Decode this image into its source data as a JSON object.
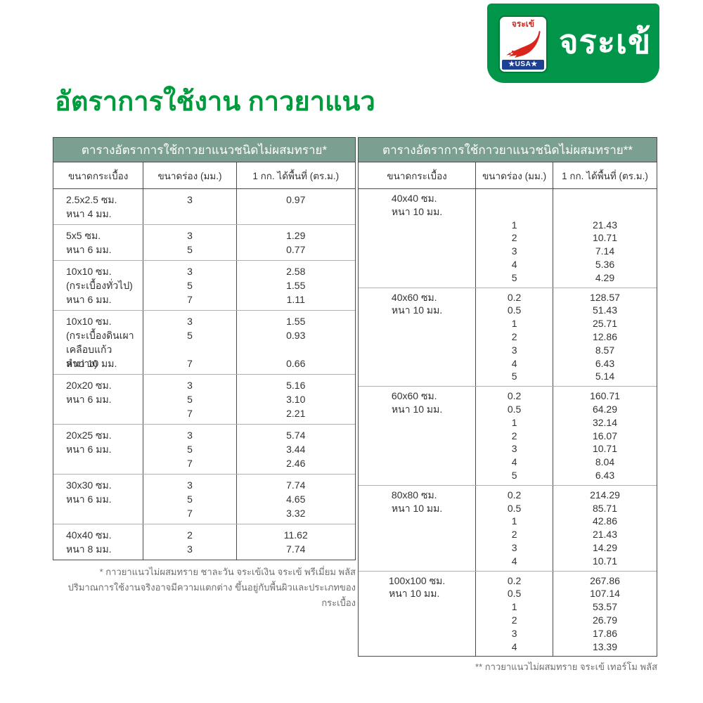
{
  "brand": {
    "logo_text": "จระเข้",
    "badge_text": "จระเข้",
    "badge_usa_text": "★USA★",
    "colors": {
      "logo_green": "#009549",
      "badge_red": "#d9251c",
      "badge_blue": "#1d3f94",
      "title_green": "#009b3c",
      "table_header_bg": "#7ba092"
    }
  },
  "page_title": "อัตราการใช้งาน กาวยาแนว",
  "left_table": {
    "title": "ตารางอัตราการใช้กาวยาแนวชนิดไม่ผสมทราย*",
    "columns": [
      "ขนาดกระเบื้อง",
      "ขนาดร่อง (มม.)",
      "1 กก. ได้พื้นที่ (ตร.ม.)"
    ],
    "rows": [
      {
        "tile": [
          "2.5x2.5 ซม.",
          "หนา 4 มม."
        ],
        "groove": [
          "3"
        ],
        "area": [
          "0.97"
        ]
      },
      {
        "tile": [
          "5x5 ซม.",
          "หนา 6 มม."
        ],
        "groove": [
          "3",
          "5"
        ],
        "area": [
          "1.29",
          "0.77"
        ]
      },
      {
        "tile": [
          "10x10 ซม.",
          "(กระเบื้องทั่วไป)",
          "หนา 6 มม."
        ],
        "groove": [
          "3",
          "5",
          "7"
        ],
        "area": [
          "2.58",
          "1.55",
          "1.11"
        ]
      },
      {
        "tile": [
          "10x10 ซม.",
          "(กระเบื้องดินเผา",
          "เคลือบแก้วลำปาง)",
          "หนา 10 มม."
        ],
        "groove": [
          "3",
          "5",
          "",
          "7"
        ],
        "area": [
          "1.55",
          "0.93",
          "",
          "0.66"
        ]
      },
      {
        "tile": [
          "20x20 ซม.",
          "หนา 6 มม."
        ],
        "groove": [
          "3",
          "5",
          "7"
        ],
        "area": [
          "5.16",
          "3.10",
          "2.21"
        ]
      },
      {
        "tile": [
          "20x25 ซม.",
          "หนา 6 มม."
        ],
        "groove": [
          "3",
          "5",
          "7"
        ],
        "area": [
          "5.74",
          "3.44",
          "2.46"
        ]
      },
      {
        "tile": [
          "30x30 ซม.",
          "หนา 6 มม."
        ],
        "groove": [
          "3",
          "5",
          "7"
        ],
        "area": [
          "7.74",
          "4.65",
          "3.32"
        ]
      },
      {
        "tile": [
          "40x40 ซม.",
          "หนา 8 มม."
        ],
        "groove": [
          "2",
          "3"
        ],
        "area": [
          "11.62",
          "7.74"
        ]
      }
    ]
  },
  "right_table": {
    "title": "ตารางอัตราการใช้กาวยาแนวชนิดไม่ผสมทราย**",
    "columns": [
      "ขนาดกระเบื้อง",
      "ขนาดร่อง (มม.)",
      "1 กก. ได้พื้นที่ (ตร.ม.)"
    ],
    "rows": [
      {
        "tile": [
          "40x40 ซม.",
          "หนา 10 มม."
        ],
        "groove": [
          "",
          "",
          "1",
          "2",
          "3",
          "4",
          "5"
        ],
        "area": [
          "",
          "",
          "21.43",
          "10.71",
          "7.14",
          "5.36",
          "4.29"
        ]
      },
      {
        "tile": [
          "40x60 ซม.",
          "หนา 10 มม."
        ],
        "groove": [
          "0.2",
          "0.5",
          "1",
          "2",
          "3",
          "4",
          "5"
        ],
        "area": [
          "128.57",
          "51.43",
          "25.71",
          "12.86",
          "8.57",
          "6.43",
          "5.14"
        ]
      },
      {
        "tile": [
          "60x60 ซม.",
          "หนา 10 มม."
        ],
        "groove": [
          "0.2",
          "0.5",
          "1",
          "2",
          "3",
          "4",
          "5"
        ],
        "area": [
          "160.71",
          "64.29",
          "32.14",
          "16.07",
          "10.71",
          "8.04",
          "6.43"
        ]
      },
      {
        "tile": [
          "80x80 ซม.",
          "หนา 10 มม."
        ],
        "groove": [
          "0.2",
          "0.5",
          "1",
          "2",
          "3",
          "4"
        ],
        "area": [
          "214.29",
          "85.71",
          "42.86",
          "21.43",
          "14.29",
          "10.71"
        ]
      },
      {
        "tile": [
          "100x100 ซม.",
          "หนา 10 มม."
        ],
        "groove": [
          "0.2",
          "0.5",
          "1",
          "2",
          "3",
          "4"
        ],
        "area": [
          "267.86",
          "107.14",
          "53.57",
          "26.79",
          "17.86",
          "13.39"
        ]
      }
    ]
  },
  "footnotes": {
    "left_line1": "* กาวยาแนวไม่ผสมทราย ชาละวัน จระเข้เงิน จระเข้ พรีเมี่ยม พลัส",
    "left_line2": "ปริมาณการใช้งานจริงอาจมีความแตกต่าง ขึ้นอยู่กับพื้นผิวและประเภทของกระเบื้อง",
    "right": "** กาวยาแนวไม่ผสมทราย จระเข้ เทอร์โม พลัส"
  }
}
